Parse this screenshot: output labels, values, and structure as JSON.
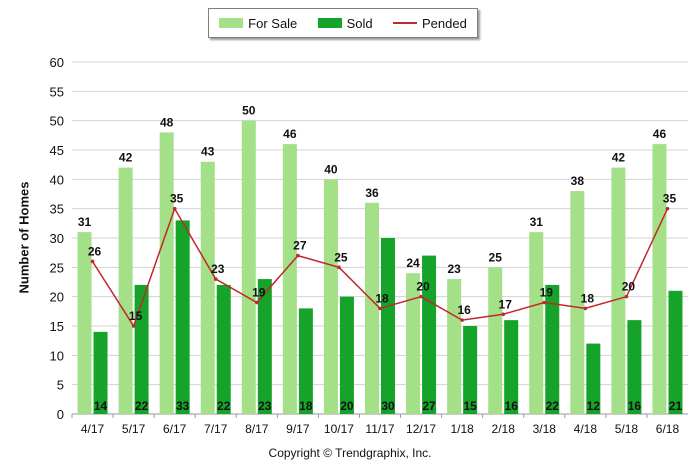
{
  "legend": {
    "items": [
      {
        "label": "For Sale",
        "color": "#a3e088",
        "kind": "bar"
      },
      {
        "label": "Sold",
        "color": "#15a32a",
        "kind": "bar"
      },
      {
        "label": "Pended",
        "color": "#c0282d",
        "kind": "line"
      }
    ]
  },
  "copyright": "Copyright © Trendgraphix, Inc.",
  "chart_data": {
    "type": "bar",
    "ylabel": "Number of Homes",
    "ylim": [
      0,
      60
    ],
    "yticks": [
      0,
      5,
      10,
      15,
      20,
      25,
      30,
      35,
      40,
      45,
      50,
      55,
      60
    ],
    "grid": true,
    "legend_position": "top-center",
    "categories": [
      "4/17",
      "5/17",
      "6/17",
      "7/17",
      "8/17",
      "9/17",
      "10/17",
      "11/17",
      "12/17",
      "1/18",
      "2/18",
      "3/18",
      "4/18",
      "5/18",
      "6/18"
    ],
    "series": [
      {
        "name": "For Sale",
        "type": "bar",
        "color": "#a3e088",
        "values": [
          31,
          42,
          48,
          43,
          50,
          46,
          40,
          36,
          24,
          23,
          25,
          31,
          38,
          42,
          46
        ]
      },
      {
        "name": "Sold",
        "type": "bar",
        "color": "#15a32a",
        "values": [
          14,
          22,
          33,
          22,
          23,
          18,
          20,
          30,
          27,
          15,
          16,
          22,
          12,
          16,
          21
        ]
      },
      {
        "name": "Pended",
        "type": "line",
        "color": "#c0282d",
        "values": [
          26,
          15,
          35,
          23,
          19,
          27,
          25,
          18,
          20,
          16,
          17,
          19,
          18,
          20,
          35
        ]
      }
    ]
  }
}
